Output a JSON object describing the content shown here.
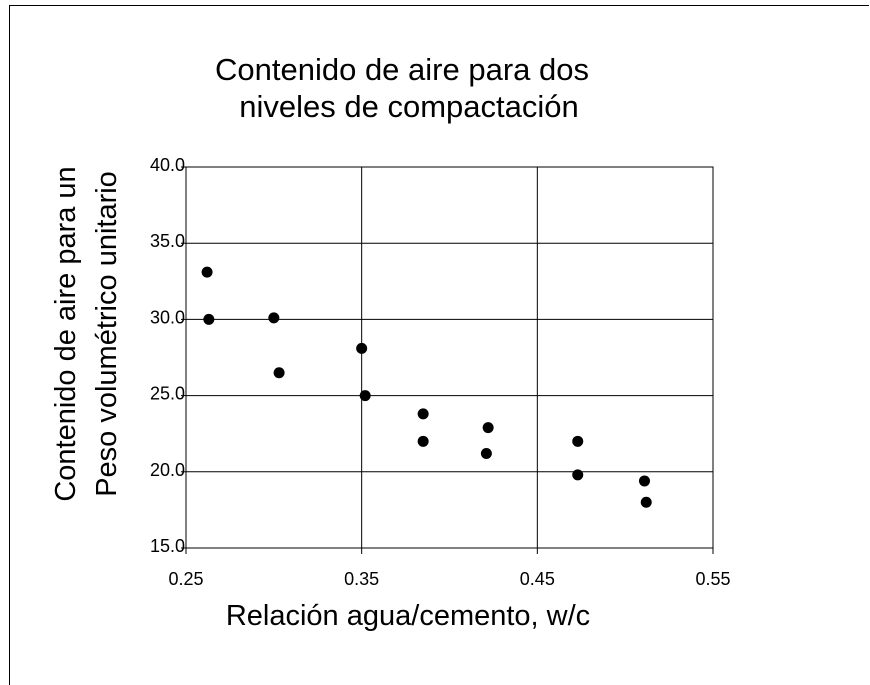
{
  "chart_data": {
    "type": "scatter",
    "title_lines": [
      "Contenido de aire para dos",
      "niveles de compactación"
    ],
    "xlabel": "Relación agua/cemento, w/c",
    "ylabel_lines": [
      "Contenido de aire para un",
      "Peso volumétrico unitario"
    ],
    "xlim": [
      0.25,
      0.55
    ],
    "ylim": [
      15.0,
      40.0
    ],
    "x_ticks": [
      "0.25",
      "0.35",
      "0.45",
      "0.55"
    ],
    "y_ticks": [
      "15.0",
      "20.0",
      "25.0",
      "30.0",
      "35.0",
      "40.0"
    ],
    "grid": true,
    "legend": "none",
    "marker_color": "#000000",
    "points": [
      {
        "x": 0.262,
        "y": 33.1
      },
      {
        "x": 0.263,
        "y": 30.0
      },
      {
        "x": 0.3,
        "y": 30.1
      },
      {
        "x": 0.303,
        "y": 26.5
      },
      {
        "x": 0.35,
        "y": 28.1
      },
      {
        "x": 0.352,
        "y": 25.0
      },
      {
        "x": 0.385,
        "y": 23.8
      },
      {
        "x": 0.385,
        "y": 22.0
      },
      {
        "x": 0.422,
        "y": 22.9
      },
      {
        "x": 0.421,
        "y": 21.2
      },
      {
        "x": 0.473,
        "y": 22.0
      },
      {
        "x": 0.473,
        "y": 19.8
      },
      {
        "x": 0.511,
        "y": 19.4
      },
      {
        "x": 0.512,
        "y": 18.0
      }
    ]
  }
}
